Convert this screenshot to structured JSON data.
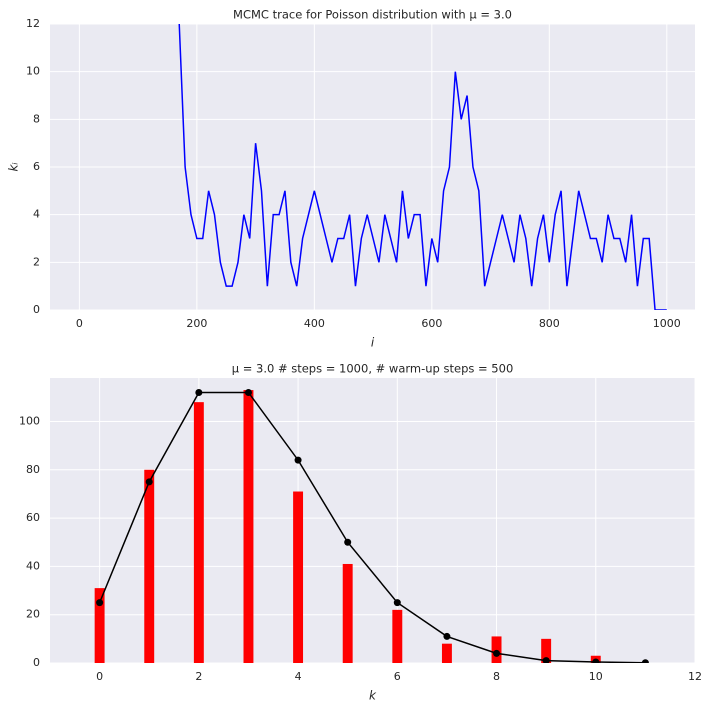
{
  "chart_data": [
    {
      "type": "line",
      "title": "MCMC trace for Poisson distribution with μ = 3.0",
      "x_label": "i",
      "y_label": "kᵢ",
      "xlim": [
        -50,
        1048
      ],
      "ylim": [
        0,
        12
      ],
      "xticks": [
        0,
        200,
        400,
        600,
        800,
        1000
      ],
      "yticks": [
        0,
        2,
        4,
        6,
        8,
        10,
        12
      ],
      "grid": true,
      "x": [
        170,
        180,
        190,
        200,
        210,
        220,
        230,
        240,
        250,
        260,
        270,
        280,
        290,
        300,
        310,
        320,
        330,
        340,
        350,
        360,
        370,
        380,
        390,
        400,
        410,
        420,
        430,
        440,
        450,
        460,
        470,
        480,
        490,
        500,
        510,
        520,
        530,
        540,
        550,
        560,
        570,
        580,
        590,
        600,
        610,
        620,
        630,
        640,
        650,
        660,
        670,
        680,
        690,
        700,
        710,
        720,
        730,
        740,
        750,
        760,
        770,
        780,
        790,
        800,
        810,
        820,
        830,
        840,
        850,
        860,
        870,
        880,
        890,
        900,
        910,
        920,
        930,
        940,
        950,
        960,
        970,
        980,
        990,
        1000
      ],
      "series": [
        {
          "color": "#0000ff",
          "values": [
            12,
            6,
            4,
            3,
            3,
            5,
            4,
            2,
            1,
            1,
            2,
            4,
            3,
            7,
            5,
            1,
            4,
            4,
            5,
            2,
            1,
            3,
            4,
            5,
            4,
            3,
            2,
            3,
            3,
            4,
            1,
            3,
            4,
            3,
            2,
            4,
            3,
            2,
            5,
            3,
            4,
            4,
            1,
            3,
            2,
            5,
            6,
            10,
            8,
            9,
            6,
            5,
            1,
            2,
            3,
            4,
            3,
            2,
            4,
            3,
            1,
            3,
            4,
            2,
            4,
            5,
            1,
            3,
            5,
            4,
            3,
            3,
            2,
            4,
            3,
            3,
            2,
            4,
            1,
            3,
            3,
            0,
            0,
            0
          ]
        }
      ]
    },
    {
      "type": "combo",
      "title": "μ = 3.0  # steps = 1000, # warm-up steps = 500",
      "x_label": "k",
      "xlim": [
        -1,
        12
      ],
      "ylim": [
        0,
        118
      ],
      "xticks": [
        0,
        2,
        4,
        6,
        8,
        10,
        12
      ],
      "yticks": [
        0,
        20,
        40,
        60,
        80,
        100
      ],
      "grid": true,
      "x": [
        0,
        1,
        2,
        3,
        4,
        5,
        6,
        7,
        8,
        9,
        10,
        11
      ],
      "series": [
        {
          "kind": "bar",
          "color": "#ff0000",
          "values": [
            31,
            80,
            108,
            113,
            71,
            41,
            22,
            8,
            11,
            10,
            3,
            0
          ]
        },
        {
          "kind": "line",
          "color": "#000000",
          "marker": "circle",
          "values": [
            25,
            75,
            112,
            112,
            84,
            50,
            25,
            11,
            4,
            1,
            0.4,
            0.1
          ]
        }
      ]
    }
  ]
}
